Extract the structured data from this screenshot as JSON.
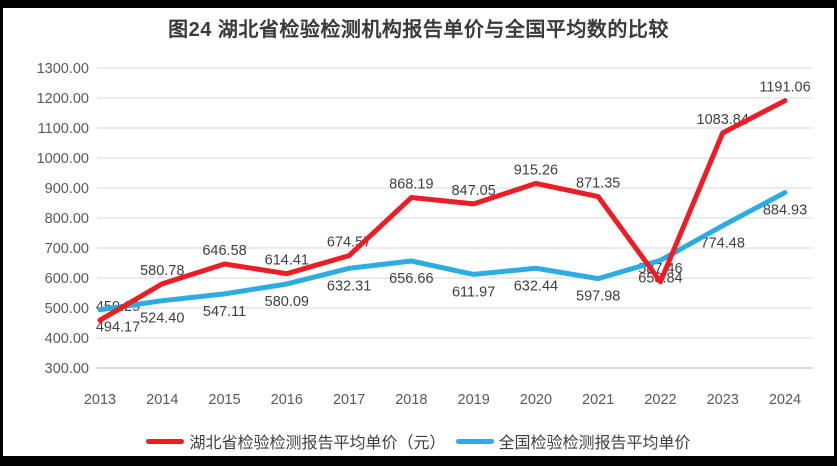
{
  "title": "图24 湖北省检验检测机构报告单价与全国平均数的比较",
  "chart_data": {
    "type": "line",
    "title": "图24 湖北省检验检测机构报告单价与全国平均数的比较",
    "categories": [
      "2013",
      "2014",
      "2015",
      "2016",
      "2017",
      "2018",
      "2019",
      "2020",
      "2021",
      "2022",
      "2023",
      "2024"
    ],
    "series": [
      {
        "name": "湖北省检验检测报告平均单价（元）",
        "color": "#ee1c25",
        "label_position": "above",
        "values": [
          459.29,
          580.78,
          646.58,
          614.41,
          674.57,
          868.19,
          847.05,
          915.26,
          871.35,
          587.46,
          1083.84,
          1191.06
        ],
        "labels": [
          "459.29",
          "580.78",
          "646.58",
          "614.41",
          "674.57",
          "868.19",
          "847.05",
          "915.26",
          "871.35",
          "587.46",
          "1083.84",
          "1191.06"
        ]
      },
      {
        "name": "全国检验检测报告平均单价",
        "color": "#2bace2",
        "label_position": "below",
        "values": [
          494.17,
          524.4,
          547.11,
          580.09,
          632.31,
          656.66,
          611.97,
          632.44,
          597.98,
          658.84,
          774.48,
          884.93
        ],
        "labels": [
          "494.17",
          "524.40",
          "547.11",
          "580.09",
          "632.31",
          "656.66",
          "611.97",
          "632.44",
          "597.98",
          "658.84",
          "774.48",
          "884.93"
        ]
      }
    ],
    "xlabel": "",
    "ylabel": "",
    "ylim": [
      300,
      1300
    ],
    "ytick_step": 100,
    "ytick_labels": [
      "300.00",
      "400.00",
      "500.00",
      "600.00",
      "700.00",
      "800.00",
      "900.00",
      "1000.00",
      "1100.00",
      "1200.00",
      "1300.00"
    ],
    "grid": true,
    "legend_position": "bottom"
  },
  "colors": {
    "series_hubei": "#ee1c25",
    "series_national": "#2bace2",
    "gridline": "#e0e0e0",
    "axis_line": "#c6c6c6",
    "tick_text": "#595959",
    "data_label_text": "#404040",
    "title_text": "#3a3a3a",
    "frame": "#000000",
    "background": "#ffffff"
  }
}
